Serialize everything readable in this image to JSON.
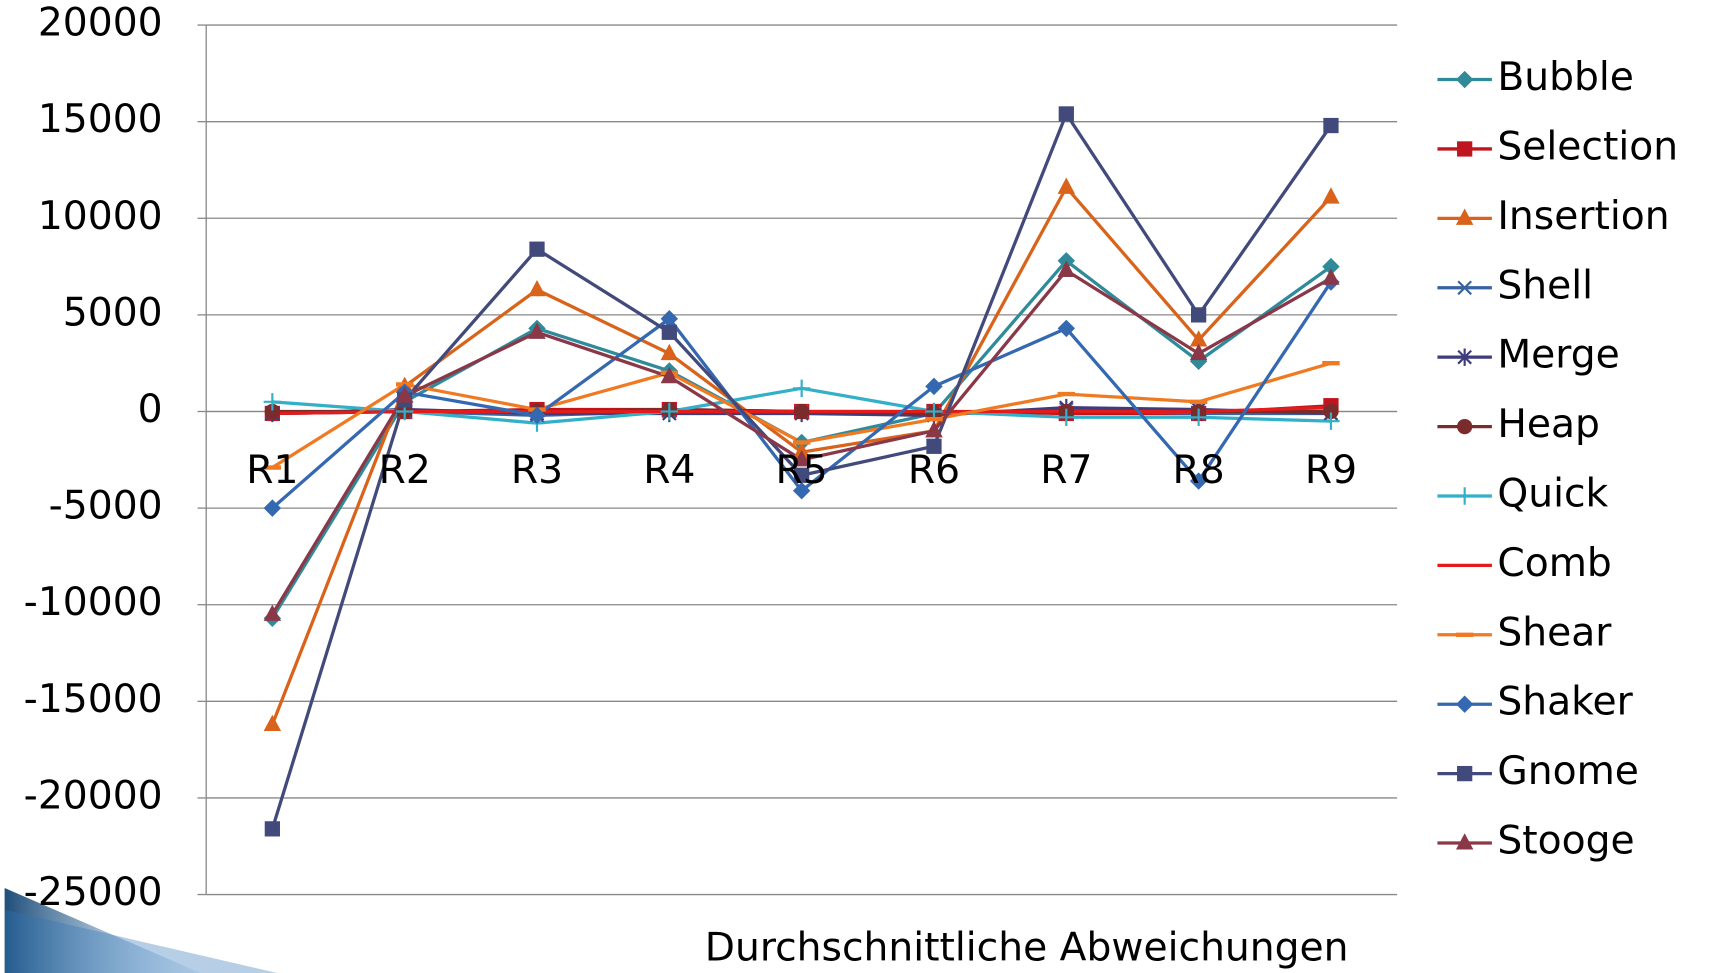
{
  "chart_data": {
    "type": "line",
    "x_label": "Durchschnittliche Abweichungen",
    "categories": [
      "R1",
      "R2",
      "R3",
      "R4",
      "R5",
      "R6",
      "R7",
      "R8",
      "R9"
    ],
    "ylim": [
      -25000,
      20000
    ],
    "yticks": [
      -25000,
      -20000,
      -15000,
      -10000,
      -5000,
      0,
      5000,
      10000,
      15000,
      20000
    ],
    "grid": true,
    "legend": "right",
    "series": [
      {
        "name": "Bubble",
        "color": "#2f8a9a",
        "marker": "diamond",
        "values": [
          -10700,
          500,
          4300,
          2100,
          -1600,
          -100,
          7800,
          2600,
          7500
        ]
      },
      {
        "name": "Selection",
        "color": "#c0151f",
        "marker": "square",
        "values": [
          -100,
          0,
          100,
          100,
          0,
          0,
          -100,
          -100,
          300
        ]
      },
      {
        "name": "Insertion",
        "color": "#d9631a",
        "marker": "triangle",
        "values": [
          -16200,
          1300,
          6300,
          3000,
          -2100,
          -1000,
          11600,
          3700,
          11100
        ]
      },
      {
        "name": "Shell",
        "color": "#3a62a0",
        "marker": "x",
        "values": [
          -100,
          0,
          -200,
          0,
          0,
          -100,
          100,
          -100,
          -100
        ]
      },
      {
        "name": "Merge",
        "color": "#3f3c7c",
        "marker": "star",
        "values": [
          -100,
          100,
          -100,
          -100,
          -100,
          -200,
          200,
          100,
          -100
        ]
      },
      {
        "name": "Heap",
        "color": "#7a2b2b",
        "marker": "circle",
        "values": [
          0,
          0,
          0,
          100,
          0,
          -100,
          0,
          0,
          0
        ]
      },
      {
        "name": "Quick",
        "color": "#33b0c8",
        "marker": "plus",
        "values": [
          500,
          0,
          -600,
          0,
          1200,
          0,
          -300,
          -300,
          -500
        ]
      },
      {
        "name": "Comb",
        "color": "#e21b1b",
        "marker": "none",
        "values": [
          -100,
          0,
          0,
          0,
          0,
          0,
          0,
          0,
          200
        ]
      },
      {
        "name": "Shear",
        "color": "#f07a22",
        "marker": "dash",
        "values": [
          -2900,
          1400,
          100,
          2000,
          -1600,
          -400,
          900,
          500,
          2500
        ]
      },
      {
        "name": "Shaker",
        "color": "#3468b0",
        "marker": "diamond",
        "values": [
          -5000,
          1000,
          -200,
          4800,
          -4100,
          1300,
          4300,
          -3600,
          6700
        ]
      },
      {
        "name": "Gnome",
        "color": "#424a7c",
        "marker": "square",
        "values": [
          -21600,
          600,
          8400,
          4100,
          -3300,
          -1800,
          15400,
          5000,
          14800
        ]
      },
      {
        "name": "Stooge",
        "color": "#8a3848",
        "marker": "triangle",
        "values": [
          -10500,
          800,
          4100,
          1800,
          -2500,
          -1000,
          7300,
          3000,
          6900
        ]
      }
    ]
  }
}
